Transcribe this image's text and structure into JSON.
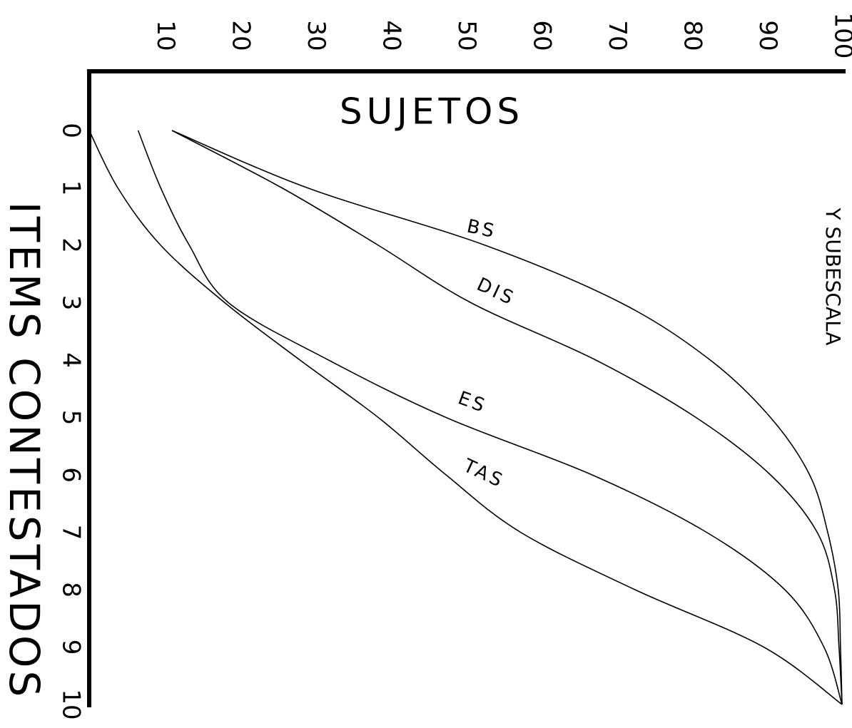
{
  "chart_data": {
    "type": "line",
    "y_label": "SUJETOS",
    "x_label": "ITEMS CONTESTADOS",
    "annotation": "Y SUBESCALA",
    "x": [
      0,
      1,
      2,
      3,
      4,
      5,
      6,
      7,
      8,
      9,
      10
    ],
    "xlim": [
      0,
      10
    ],
    "xticks": [
      0,
      1,
      2,
      3,
      4,
      5,
      6,
      7,
      8,
      9,
      10
    ],
    "ylim": [
      0,
      100
    ],
    "yticks": [
      10,
      20,
      30,
      40,
      50,
      60,
      70,
      80,
      90,
      100
    ],
    "grid": false,
    "series": [
      {
        "name": "BS",
        "color": "#000000",
        "values": [
          11,
          29,
          52.6,
          70.6,
          82.5,
          90.5,
          95.7,
          98.1,
          99.5,
          99.8,
          100
        ]
      },
      {
        "name": "DIS",
        "color": "#000000",
        "values": [
          11,
          25.6,
          38.4,
          50.7,
          67.3,
          80.6,
          90.5,
          96.7,
          99,
          99.6,
          100
        ]
      },
      {
        "name": "ES",
        "color": "#000000",
        "values": [
          6.5,
          9.5,
          13.3,
          18.5,
          31.8,
          47.4,
          66.8,
          82,
          92.4,
          97.6,
          100
        ]
      },
      {
        "name": "TAS",
        "color": "#000000",
        "values": [
          0,
          3.8,
          9.5,
          18,
          28,
          38.4,
          47.4,
          57.3,
          72.5,
          89.6,
          100
        ]
      }
    ]
  }
}
